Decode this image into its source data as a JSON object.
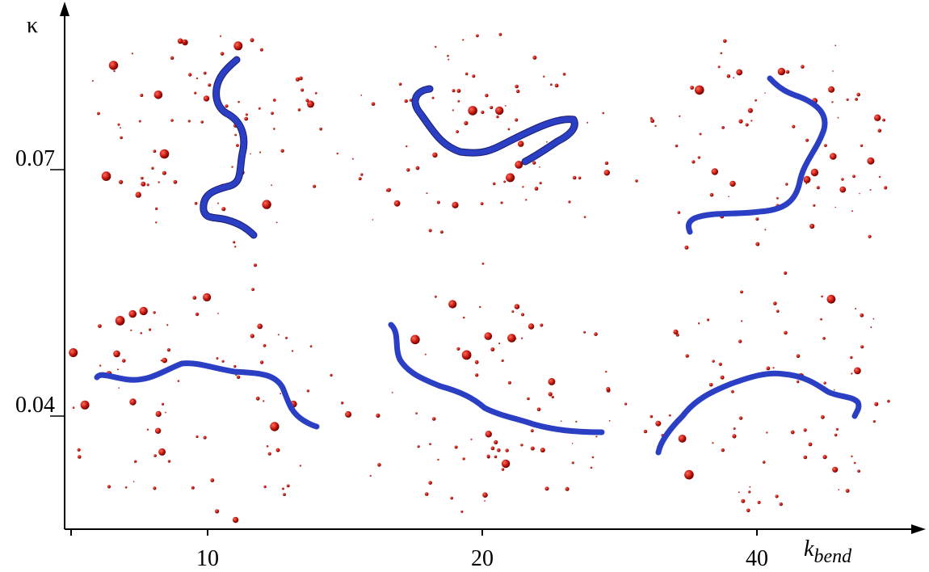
{
  "axes": {
    "y_label": "κ",
    "x_label": "k",
    "x_label_sub": "bend",
    "x_ticks": [
      "10",
      "20",
      "40"
    ],
    "y_ticks": [
      "0.07",
      "0.04"
    ]
  }
}
